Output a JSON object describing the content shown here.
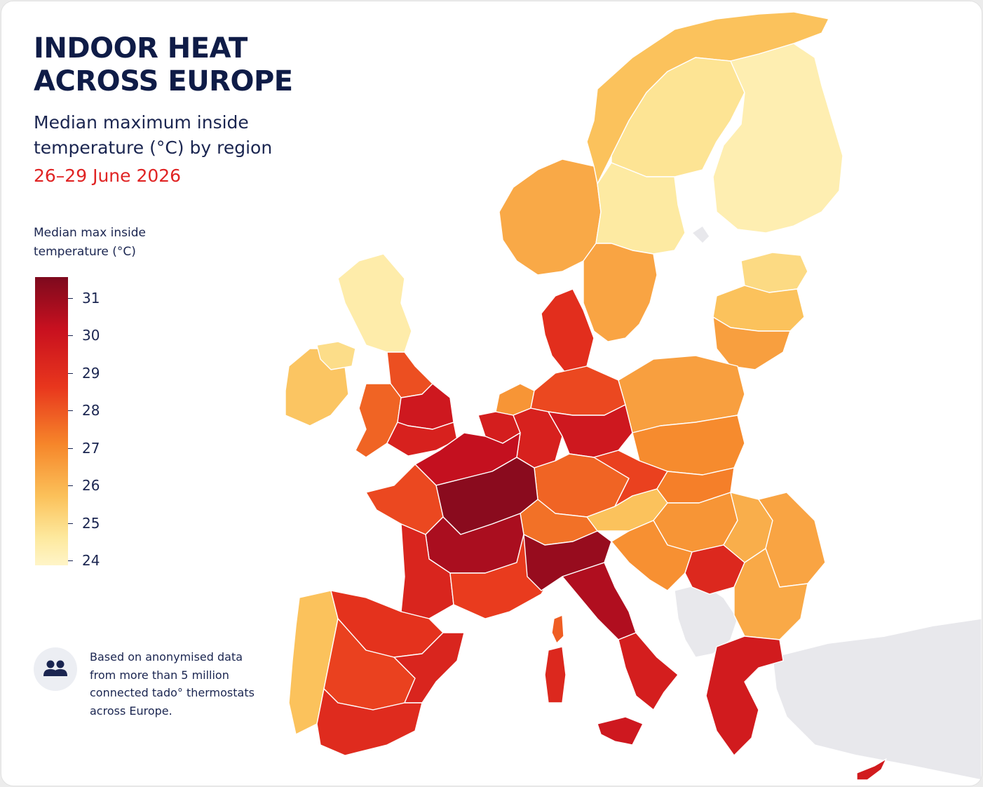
{
  "header": {
    "title_line1": "INDOOR HEAT",
    "title_line2": "ACROSS EUROPE",
    "subtitle": "Median maximum inside temperature (°C) by region",
    "date_range": "26–29 June 2026"
  },
  "legend": {
    "title": "Median max inside temperature (°C)",
    "ticks": [
      "31",
      "30",
      "29",
      "28",
      "27",
      "26",
      "25",
      "24"
    ],
    "tick_values": [
      31,
      30,
      29,
      28,
      27,
      26,
      25,
      24
    ],
    "min": 24,
    "max": 31,
    "colors": [
      "#7d0a1e",
      "#c8101f",
      "#e8361d",
      "#f6862a",
      "#fbc15a",
      "#fde89c",
      "#fff5c8"
    ]
  },
  "note": {
    "icon": "people-icon",
    "text": "Based on anonymised data from more than 5 million connected tado° thermostats across Europe."
  },
  "colors": {
    "title": "#0f1c47",
    "date": "#e02424",
    "no_data": "#e8e8ec"
  },
  "regions": [
    {
      "id": "norway-north",
      "temp": 26.3
    },
    {
      "id": "norway-south",
      "temp": 26.8
    },
    {
      "id": "sweden-north",
      "temp": 25.3
    },
    {
      "id": "sweden-central",
      "temp": 25.0
    },
    {
      "id": "sweden-south",
      "temp": 26.9
    },
    {
      "id": "finland",
      "temp": 24.6
    },
    {
      "id": "estonia",
      "temp": 25.6
    },
    {
      "id": "latvia",
      "temp": 26.3
    },
    {
      "id": "lithuania",
      "temp": 27.0
    },
    {
      "id": "scotland",
      "temp": 24.8
    },
    {
      "id": "ireland",
      "temp": 26.2
    },
    {
      "id": "northern-ireland",
      "temp": 25.5
    },
    {
      "id": "england-north",
      "temp": 28.3
    },
    {
      "id": "wales",
      "temp": 28.0
    },
    {
      "id": "england-midlands",
      "temp": 29.6
    },
    {
      "id": "england-south",
      "temp": 29.3
    },
    {
      "id": "denmark",
      "temp": 28.9
    },
    {
      "id": "netherlands",
      "temp": 27.2
    },
    {
      "id": "belgium",
      "temp": 29.4
    },
    {
      "id": "germany-north",
      "temp": 28.4
    },
    {
      "id": "germany-west",
      "temp": 29.3
    },
    {
      "id": "germany-east",
      "temp": 29.6
    },
    {
      "id": "germany-south",
      "temp": 28.0
    },
    {
      "id": "poland-north",
      "temp": 27.0
    },
    {
      "id": "poland-south",
      "temp": 27.4
    },
    {
      "id": "czechia",
      "temp": 28.5
    },
    {
      "id": "slovakia",
      "temp": 27.6
    },
    {
      "id": "austria",
      "temp": 26.3
    },
    {
      "id": "switzerland",
      "temp": 27.8
    },
    {
      "id": "hungary",
      "temp": 27.2
    },
    {
      "id": "slovenia-croatia",
      "temp": 27.3
    },
    {
      "id": "france-north",
      "temp": 29.9
    },
    {
      "id": "france-paris",
      "temp": 30.8
    },
    {
      "id": "france-west",
      "temp": 28.4
    },
    {
      "id": "france-central",
      "temp": 30.3
    },
    {
      "id": "france-southwest",
      "temp": 29.2
    },
    {
      "id": "france-southeast",
      "temp": 28.6
    },
    {
      "id": "italy-north",
      "temp": 30.6
    },
    {
      "id": "italy-central",
      "temp": 30.2
    },
    {
      "id": "italy-south",
      "temp": 29.4
    },
    {
      "id": "sardinia",
      "temp": 29.1
    },
    {
      "id": "corsica",
      "temp": 28.1
    },
    {
      "id": "sicily",
      "temp": 29.6
    },
    {
      "id": "spain-north",
      "temp": 28.8
    },
    {
      "id": "spain-central",
      "temp": 28.5
    },
    {
      "id": "spain-east",
      "temp": 29.2
    },
    {
      "id": "spain-south",
      "temp": 29.0
    },
    {
      "id": "portugal",
      "temp": 26.3
    },
    {
      "id": "romania-west",
      "temp": 26.7
    },
    {
      "id": "romania-east",
      "temp": 26.9
    },
    {
      "id": "serbia",
      "temp": 29.1
    },
    {
      "id": "bulgaria",
      "temp": 26.8
    },
    {
      "id": "greece",
      "temp": 29.5
    },
    {
      "id": "cyprus",
      "temp": 29.5
    }
  ]
}
